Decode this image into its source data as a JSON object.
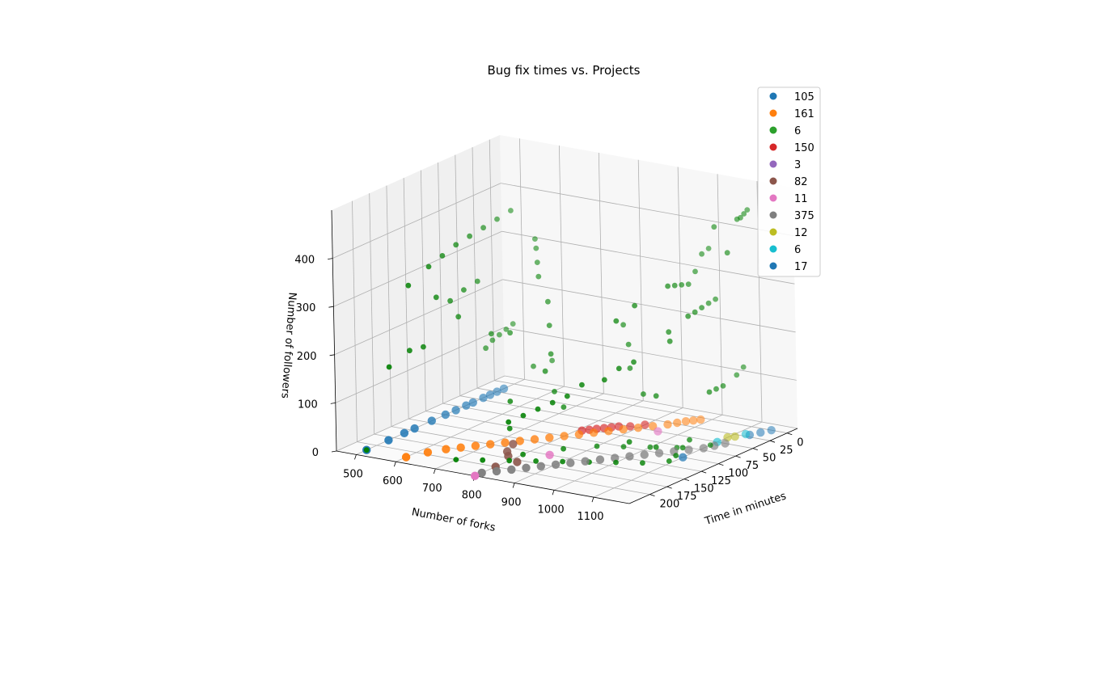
{
  "chart_data": {
    "type": "scatter",
    "title": "Bug fix times vs. Projects",
    "xlabel": "Number of forks",
    "ylabel": "Time in minutes",
    "zlabel": "Number of followers",
    "x_ticks": [
      500,
      600,
      700,
      800,
      900,
      1000,
      1100
    ],
    "y_ticks": [
      0,
      25,
      50,
      75,
      100,
      125,
      150,
      175,
      200
    ],
    "z_ticks": [
      0,
      100,
      200,
      300,
      400
    ],
    "legend_position": "upper right",
    "series": [
      {
        "name": "105",
        "color": "#1f77b4",
        "points": [
          [
            500,
            215,
            0
          ],
          [
            500,
            183,
            0
          ],
          [
            500,
            160,
            0
          ],
          [
            500,
            145,
            0
          ],
          [
            500,
            120,
            0
          ],
          [
            500,
            100,
            0
          ],
          [
            500,
            85,
            0
          ],
          [
            500,
            70,
            0
          ],
          [
            500,
            60,
            0
          ],
          [
            500,
            45,
            0
          ],
          [
            500,
            35,
            0
          ],
          [
            500,
            25,
            0
          ],
          [
            500,
            15,
            0
          ]
        ]
      },
      {
        "name": "161",
        "color": "#ff7f0e",
        "points": [
          [
            600,
            215,
            0
          ],
          [
            620,
            195,
            0
          ],
          [
            640,
            180,
            0
          ],
          [
            660,
            170,
            0
          ],
          [
            680,
            160,
            0
          ],
          [
            700,
            150,
            0
          ],
          [
            720,
            140,
            0
          ],
          [
            740,
            130,
            0
          ],
          [
            760,
            120,
            0
          ],
          [
            780,
            110,
            0
          ],
          [
            800,
            100,
            0
          ],
          [
            820,
            90,
            0
          ],
          [
            840,
            80,
            0
          ],
          [
            860,
            70,
            0
          ],
          [
            880,
            60,
            0
          ],
          [
            900,
            50,
            0
          ],
          [
            920,
            40,
            0
          ],
          [
            940,
            30,
            0
          ],
          [
            950,
            22,
            0
          ],
          [
            960,
            15,
            0
          ],
          [
            970,
            10,
            0
          ],
          [
            980,
            5,
            0
          ]
        ]
      },
      {
        "name": "6",
        "color": "#2ca02c",
        "points": [
          [
            500,
            215,
            0
          ],
          [
            500,
            180,
            150
          ],
          [
            500,
            150,
            300
          ],
          [
            500,
            120,
            320
          ],
          [
            500,
            100,
            330
          ],
          [
            500,
            80,
            340
          ],
          [
            500,
            60,
            345
          ],
          [
            500,
            40,
            350
          ],
          [
            500,
            20,
            355
          ],
          [
            500,
            0,
            360
          ],
          [
            500,
            110,
            250
          ],
          [
            500,
            130,
            160
          ],
          [
            500,
            150,
            165
          ],
          [
            500,
            90,
            230
          ],
          [
            500,
            70,
            240
          ],
          [
            500,
            50,
            245
          ],
          [
            500,
            40,
            100
          ],
          [
            500,
            30,
            110
          ],
          [
            500,
            20,
            115
          ],
          [
            500,
            10,
            120
          ],
          [
            500,
            0,
            125
          ],
          [
            520,
            90,
            200
          ],
          [
            550,
            60,
            150
          ],
          [
            580,
            50,
            150
          ],
          [
            620,
            40,
            80
          ],
          [
            650,
            30,
            90
          ],
          [
            700,
            120,
            70
          ],
          [
            750,
            150,
            40
          ],
          [
            800,
            160,
            0
          ],
          [
            850,
            130,
            0
          ],
          [
            900,
            110,
            0
          ],
          [
            950,
            100,
            0
          ],
          [
            1000,
            90,
            0
          ],
          [
            1050,
            80,
            0
          ],
          [
            1100,
            60,
            0
          ],
          [
            1000,
            30,
            300
          ],
          [
            1000,
            40,
            305
          ],
          [
            1000,
            50,
            310
          ],
          [
            1000,
            60,
            315
          ],
          [
            1000,
            20,
            320
          ],
          [
            1000,
            10,
            350
          ],
          [
            1000,
            0,
            355
          ],
          [
            1050,
            20,
            420
          ],
          [
            1100,
            10,
            440
          ],
          [
            1100,
            0,
            450
          ],
          [
            1100,
            5,
            445
          ],
          [
            1100,
            15,
            440
          ],
          [
            1050,
            60,
            260
          ],
          [
            1050,
            50,
            262
          ],
          [
            1050,
            40,
            265
          ],
          [
            1050,
            30,
            268
          ],
          [
            1050,
            20,
            270
          ],
          [
            1100,
            40,
            110
          ],
          [
            1100,
            50,
            110
          ],
          [
            1100,
            60,
            110
          ],
          [
            1100,
            20,
            120
          ],
          [
            1100,
            10,
            130
          ],
          [
            1000,
            120,
            30
          ],
          [
            1050,
            110,
            20
          ],
          [
            1000,
            80,
            100
          ],
          [
            950,
            70,
            90
          ],
          [
            900,
            60,
            130
          ],
          [
            880,
            50,
            170
          ],
          [
            850,
            40,
            200
          ],
          [
            800,
            100,
            60
          ],
          [
            760,
            90,
            80
          ],
          [
            720,
            80,
            110
          ],
          [
            700,
            60,
            130
          ],
          [
            680,
            50,
            180
          ],
          [
            660,
            40,
            220
          ],
          [
            620,
            30,
            260
          ],
          [
            600,
            20,
            280
          ],
          [
            580,
            10,
            300
          ],
          [
            560,
            0,
            310
          ],
          [
            1100,
            90,
            30
          ],
          [
            1100,
            100,
            20
          ],
          [
            1100,
            110,
            10
          ],
          [
            1100,
            120,
            5
          ],
          [
            1050,
            130,
            0
          ],
          [
            1000,
            140,
            0
          ],
          [
            950,
            150,
            0
          ],
          [
            900,
            160,
            0
          ],
          [
            850,
            170,
            0
          ],
          [
            800,
            180,
            0
          ],
          [
            750,
            190,
            0
          ],
          [
            700,
            200,
            0
          ],
          [
            1100,
            30,
            380
          ],
          [
            950,
            80,
            280
          ],
          [
            920,
            90,
            250
          ],
          [
            1000,
            60,
            220
          ],
          [
            1020,
            70,
            210
          ],
          [
            980,
            100,
            180
          ],
          [
            960,
            110,
            170
          ],
          [
            940,
            120,
            150
          ],
          [
            900,
            130,
            140
          ],
          [
            880,
            140,
            120
          ],
          [
            860,
            150,
            110
          ],
          [
            840,
            160,
            100
          ],
          [
            820,
            170,
            90
          ],
          [
            800,
            180,
            80
          ]
        ]
      },
      {
        "name": "150",
        "color": "#d62728",
        "points": [
          [
            900,
            40,
            0
          ],
          [
            880,
            50,
            0
          ],
          [
            860,
            55,
            0
          ],
          [
            850,
            60,
            0
          ],
          [
            840,
            65,
            0
          ],
          [
            830,
            70,
            0
          ],
          [
            820,
            75,
            0
          ],
          [
            810,
            80,
            0
          ]
        ]
      },
      {
        "name": "3",
        "color": "#9467bd",
        "points": []
      },
      {
        "name": "82",
        "color": "#8c564b",
        "points": [
          [
            800,
            200,
            0
          ],
          [
            820,
            180,
            0
          ],
          [
            780,
            170,
            0
          ],
          [
            760,
            160,
            0
          ],
          [
            740,
            140,
            0
          ]
        ]
      },
      {
        "name": "11",
        "color": "#e377c2",
        "points": [
          [
            800,
            230,
            0
          ],
          [
            850,
            150,
            0
          ],
          [
            950,
            50,
            0
          ]
        ]
      },
      {
        "name": "375",
        "color": "#7f7f7f",
        "points": [
          [
            800,
            220,
            0
          ],
          [
            820,
            210,
            0
          ],
          [
            840,
            200,
            0
          ],
          [
            860,
            190,
            0
          ],
          [
            880,
            180,
            0
          ],
          [
            900,
            170,
            0
          ],
          [
            920,
            160,
            0
          ],
          [
            940,
            150,
            0
          ],
          [
            960,
            140,
            0
          ],
          [
            980,
            130,
            0
          ],
          [
            1000,
            120,
            0
          ],
          [
            1020,
            110,
            0
          ],
          [
            1040,
            100,
            0
          ],
          [
            1060,
            90,
            0
          ],
          [
            1080,
            80,
            0
          ],
          [
            1100,
            70,
            0
          ],
          [
            1110,
            60,
            0
          ],
          [
            1120,
            50,
            0
          ]
        ]
      },
      {
        "name": "12",
        "color": "#bcbd22",
        "points": [
          [
            1100,
            35,
            0
          ],
          [
            1110,
            30,
            0
          ]
        ]
      },
      {
        "name": "6",
        "color": "#17becf",
        "points": [
          [
            1100,
            50,
            0
          ],
          [
            1120,
            20,
            0
          ]
        ]
      },
      {
        "name": "17",
        "color": "#1f77b4",
        "points": [
          [
            1100,
            100,
            0
          ],
          [
            1150,
            0,
            0
          ],
          [
            1140,
            10,
            0
          ],
          [
            1130,
            20,
            0
          ]
        ]
      }
    ]
  }
}
